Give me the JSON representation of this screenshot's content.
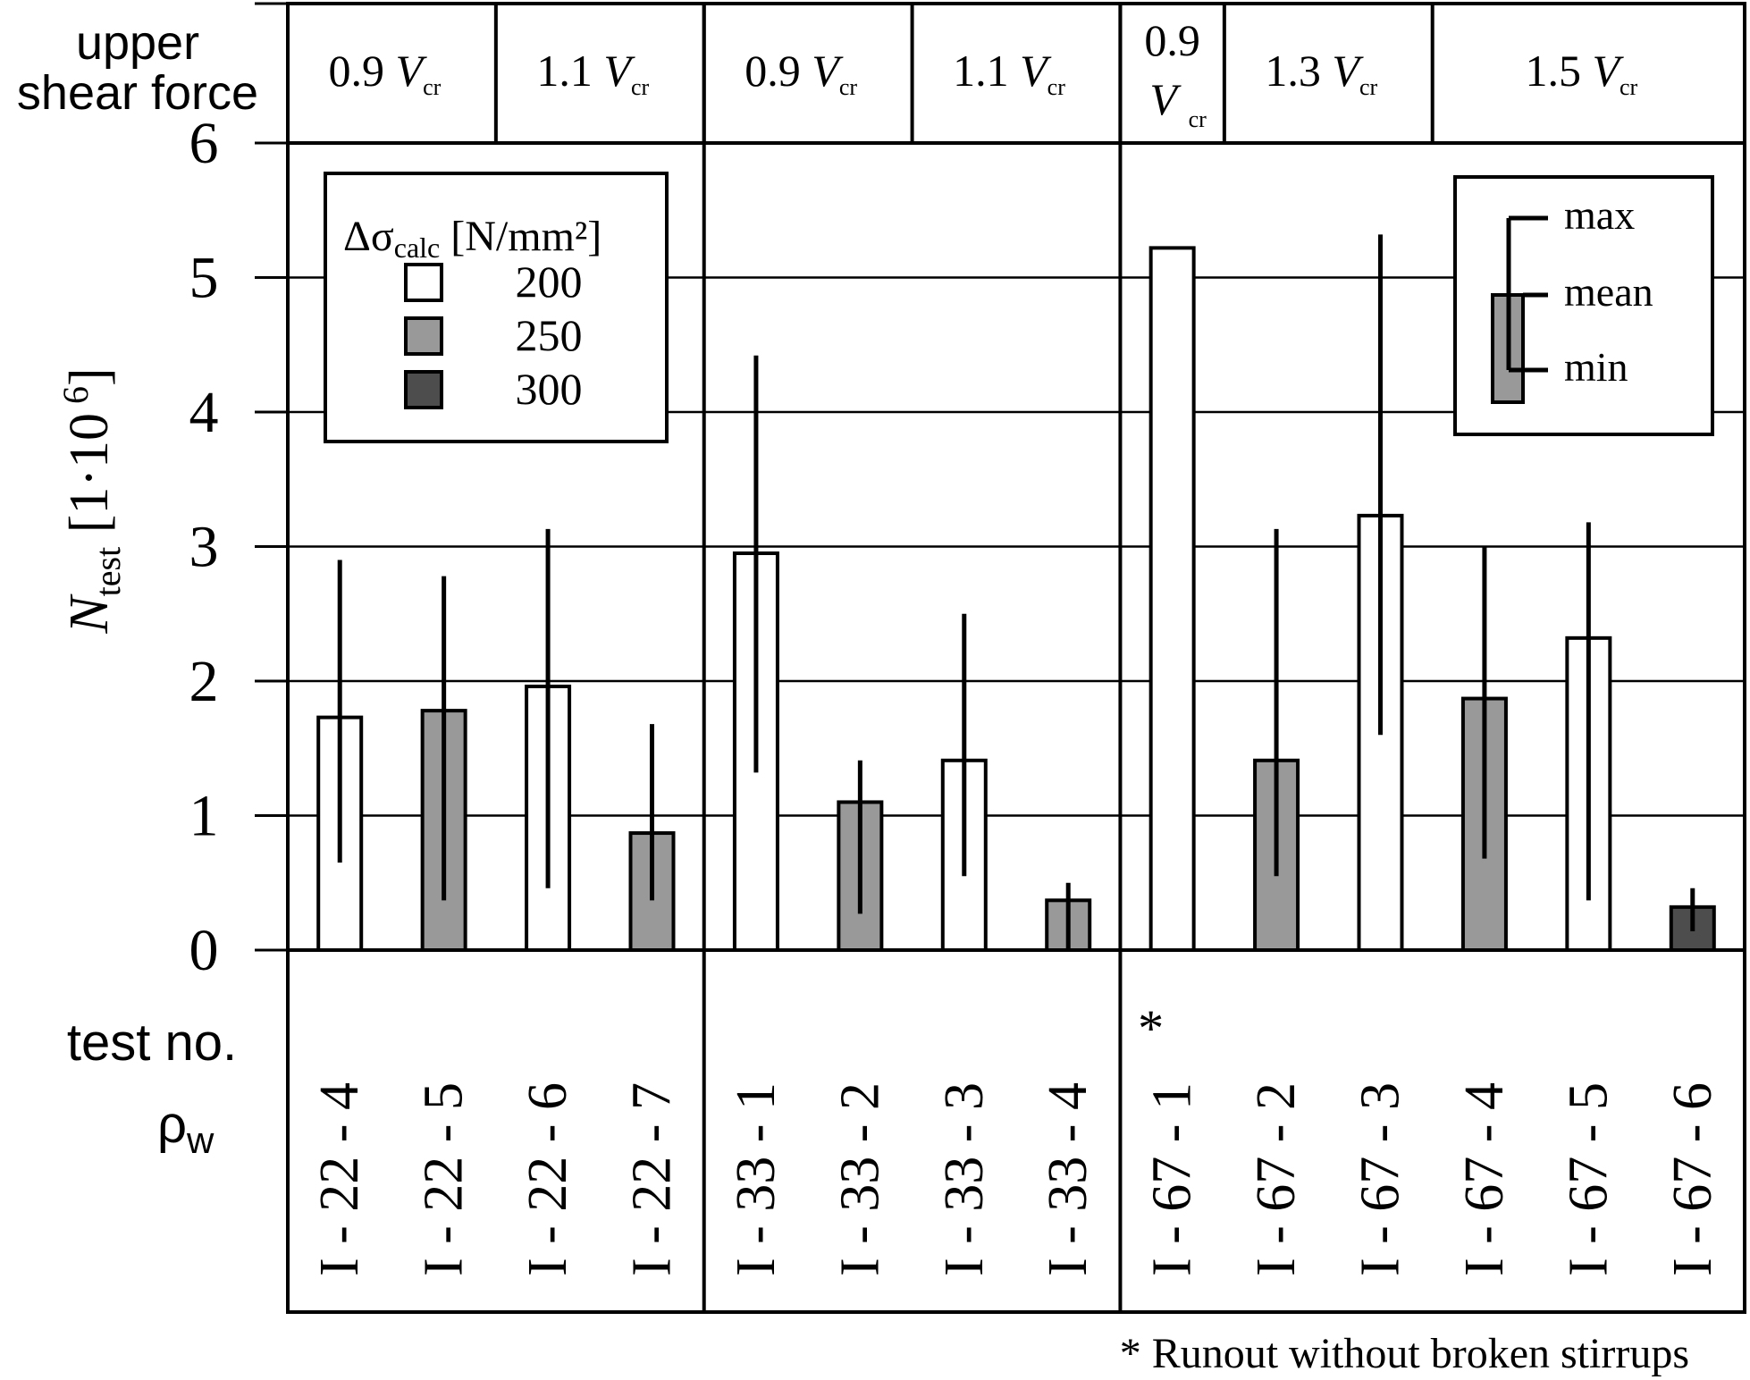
{
  "chart_data": {
    "type": "bar",
    "ylabel_main": "N",
    "ylabel_sub": "test",
    "ylabel_unit": "[1·10",
    "ylabel_exp": "6",
    "ylabel_close": "]",
    "ylim": [
      0,
      6
    ],
    "yticks": [
      "0",
      "1",
      "2",
      "3",
      "4",
      "5",
      "6"
    ],
    "grid": true,
    "header_label": [
      "upper",
      "shear force"
    ],
    "shear_groups": [
      {
        "label": "0.9",
        "sub": "cr",
        "span": [
          0,
          2
        ]
      },
      {
        "label": "1.1",
        "sub": "cr",
        "span": [
          2,
          4
        ]
      },
      {
        "label": "0.9",
        "sub": "cr",
        "span": [
          4,
          6
        ]
      },
      {
        "label": "1.1",
        "sub": "cr",
        "span": [
          6,
          8
        ]
      },
      {
        "label": "0.9",
        "sub": "cr",
        "span": [
          8,
          9
        ],
        "stacked": true
      },
      {
        "label": "1.3",
        "sub": "cr",
        "span": [
          9,
          11
        ]
      },
      {
        "label": "1.5",
        "sub": "cr",
        "span": [
          11,
          14
        ]
      }
    ],
    "row_labels": {
      "test": "test no.",
      "rho": "ρ",
      "rho_sub": "w"
    },
    "categories": [
      "I - 22 - 4",
      "I - 22 - 5",
      "I - 22 - 6",
      "I - 22 - 7",
      "I - 33 - 1",
      "I - 33 - 2",
      "I - 33 - 3",
      "I - 33 - 4",
      "I - 67 - 1",
      "I - 67 - 2",
      "I - 67 - 3",
      "I - 67 - 4",
      "I - 67 - 5",
      "I - 67 - 6"
    ],
    "runout_marker": "*",
    "runout_index": 8,
    "footnote": "* Runout without broken stirrups",
    "bars": [
      {
        "stress": 200,
        "mean": 1.73,
        "min": 0.65,
        "max": 2.9
      },
      {
        "stress": 250,
        "mean": 1.78,
        "min": 0.37,
        "max": 2.78
      },
      {
        "stress": 200,
        "mean": 1.96,
        "min": 0.46,
        "max": 3.13
      },
      {
        "stress": 250,
        "mean": 0.87,
        "min": 0.37,
        "max": 1.68
      },
      {
        "stress": 200,
        "mean": 2.95,
        "min": 1.32,
        "max": 4.42
      },
      {
        "stress": 250,
        "mean": 1.1,
        "min": 0.27,
        "max": 1.41
      },
      {
        "stress": 200,
        "mean": 1.41,
        "min": 0.55,
        "max": 2.5
      },
      {
        "stress": 250,
        "mean": 0.37,
        "min": 0.0,
        "max": 0.5
      },
      {
        "stress": 200,
        "mean": 5.22,
        "min": null,
        "max": null
      },
      {
        "stress": 250,
        "mean": 1.41,
        "min": 0.55,
        "max": 3.13
      },
      {
        "stress": 200,
        "mean": 3.23,
        "min": 1.6,
        "max": 5.32
      },
      {
        "stress": 250,
        "mean": 1.87,
        "min": 0.68,
        "max": 3.0
      },
      {
        "stress": 200,
        "mean": 2.32,
        "min": 0.37,
        "max": 3.18
      },
      {
        "stress": 300,
        "mean": 0.32,
        "min": 0.14,
        "max": 0.46
      }
    ],
    "stress_colors": {
      "200": "#ffffff",
      "250": "#999999",
      "300": "#4d4d4d"
    },
    "legend_stress": {
      "title": "Δσ",
      "title_sub": "calc",
      "unit": "[N/mm²]",
      "items": [
        {
          "value": "200",
          "color": "#ffffff"
        },
        {
          "value": "250",
          "color": "#999999"
        },
        {
          "value": "300",
          "color": "#4d4d4d"
        }
      ]
    },
    "legend_range": {
      "max": "max",
      "mean": "mean",
      "min": "min"
    }
  }
}
